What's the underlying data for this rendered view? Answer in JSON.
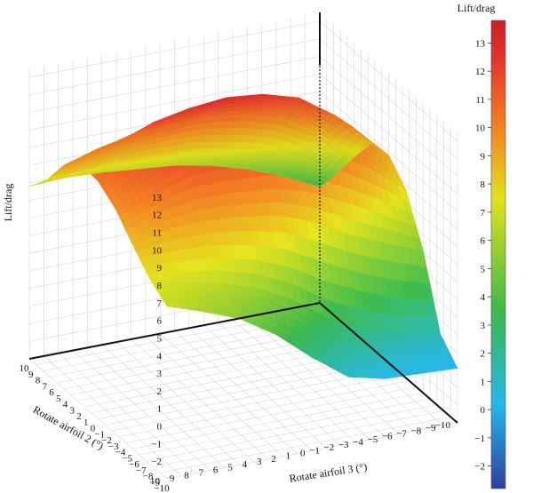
{
  "chart_data": {
    "type": "surface",
    "title": "",
    "xlabel": "Rotate airfoil 3 (°)",
    "ylabel": "Rotate airfoil 2 (°)",
    "zlabel": "Lift/drag",
    "colorbar_title": "Lift/drag",
    "x_ticks": [
      "10",
      "9",
      "8",
      "7",
      "6",
      "5",
      "4",
      "3",
      "2",
      "1",
      "0",
      "−1",
      "−2",
      "−3",
      "−4",
      "−5",
      "−6",
      "−7",
      "−8",
      "−9",
      "−10"
    ],
    "y_ticks": [
      "−10",
      "−9",
      "−8",
      "−7",
      "−6",
      "−5",
      "−4",
      "−3",
      "−2",
      "−1",
      "0",
      "1",
      "2",
      "3",
      "4",
      "5",
      "6",
      "7",
      "8",
      "9",
      "10"
    ],
    "z_ticks": [
      "−2",
      "−1",
      "0",
      "1",
      "2",
      "3",
      "4",
      "5",
      "6",
      "7",
      "8",
      "9",
      "10",
      "11",
      "12",
      "13"
    ],
    "colorbar_ticks": [
      "−2",
      "−1",
      "0",
      "1",
      "2",
      "3",
      "4",
      "5",
      "6",
      "7",
      "8",
      "9",
      "10",
      "11",
      "12",
      "13"
    ],
    "xlim": [
      -10,
      10
    ],
    "ylim": [
      -10,
      10
    ],
    "zlim": [
      -3,
      13.5
    ],
    "colorbar_range": [
      -2.8,
      13.8
    ],
    "grid": true,
    "colors": [
      "#2e3f9e",
      "#25b7ec",
      "#3db84b",
      "#e3e11c",
      "#f07d23",
      "#e5322d",
      "#7c1212"
    ],
    "surface": {
      "x": [
        -10,
        -7.5,
        -5,
        -2.5,
        0,
        2.5,
        5,
        7.5,
        10
      ],
      "y": [
        -10,
        -7.5,
        -5,
        -2.5,
        0,
        2.5,
        5,
        7.5,
        10
      ],
      "z": [
        [
          6.8,
          8.0,
          9.7,
          10.6,
          10.5,
          9.8,
          8.6,
          7.5,
          6.8
        ],
        [
          6.9,
          8.2,
          10.3,
          11.4,
          11.7,
          10.7,
          9.1,
          6.9,
          6.1
        ],
        [
          6.8,
          8.4,
          10.7,
          12.2,
          12.6,
          11.5,
          9.2,
          6.5,
          5.3
        ],
        [
          6.6,
          8.3,
          10.8,
          12.6,
          12.9,
          11.6,
          9.0,
          5.8,
          4.0
        ],
        [
          6.4,
          8.2,
          10.9,
          12.8,
          13.0,
          11.6,
          8.7,
          4.7,
          2.3
        ],
        [
          6.0,
          7.8,
          10.6,
          12.6,
          12.9,
          11.4,
          7.9,
          3.2,
          0.8
        ],
        [
          5.4,
          7.3,
          10.0,
          12.0,
          12.3,
          10.6,
          6.8,
          2.3,
          0.3
        ],
        [
          4.6,
          6.4,
          8.8,
          10.6,
          10.8,
          9.3,
          5.9,
          1.6,
          0.2
        ],
        [
          3.6,
          5.2,
          7.0,
          8.6,
          8.8,
          7.7,
          5.1,
          1.2,
          0.1
        ]
      ]
    }
  }
}
